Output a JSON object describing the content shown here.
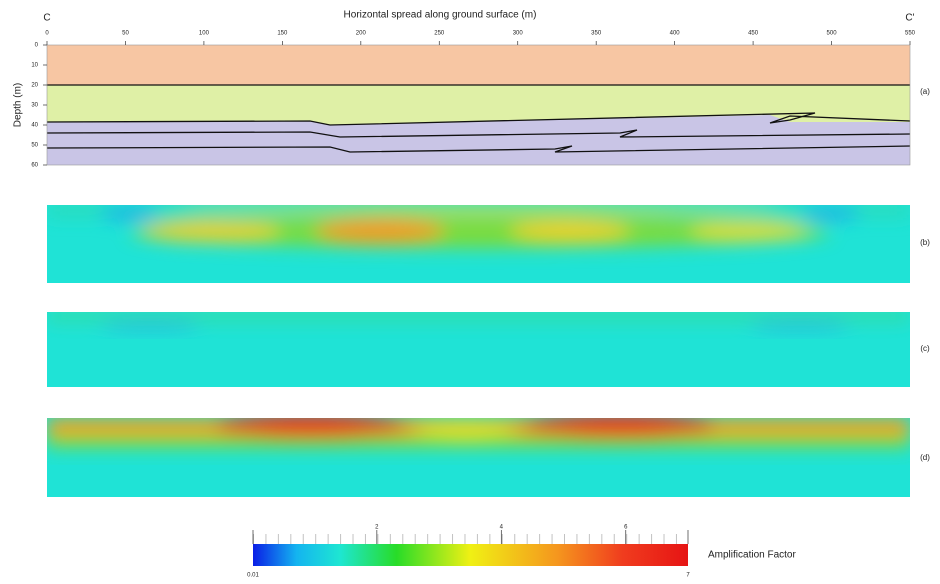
{
  "figure": {
    "x_axis": {
      "title": "Horizontal spread along ground surface (m)",
      "lim": [
        0,
        550
      ],
      "ticks": [
        0,
        50,
        100,
        150,
        200,
        250,
        300,
        350,
        400,
        450,
        500,
        550
      ]
    },
    "y_axis": {
      "title": "Depth (m)",
      "lim": [
        0,
        60
      ],
      "ticks": [
        0,
        10,
        20,
        30,
        40,
        50,
        60
      ]
    },
    "endpoints": {
      "left": "C",
      "right": "C'"
    },
    "panels": [
      "(a)",
      "(b)",
      "(c)",
      "(d)"
    ],
    "colorbar": {
      "title": "Amplification Factor",
      "lim": [
        0.01,
        7
      ],
      "ticks": [
        0.01,
        2,
        4,
        6,
        7
      ]
    }
  }
}
